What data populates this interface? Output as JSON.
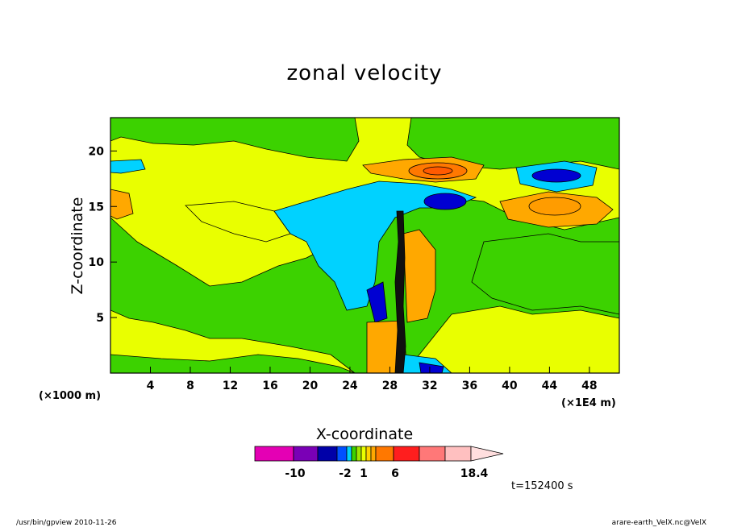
{
  "chart_data": {
    "type": "contour",
    "title": "zonal velocity",
    "xlabel": "X-coordinate",
    "ylabel": "Z-coordinate",
    "x_unit_left": "(×1000 m)",
    "x_unit_right": "(×1E4 m)",
    "x_ticks": [
      4,
      8,
      12,
      16,
      20,
      24,
      28,
      32,
      36,
      40,
      44,
      48
    ],
    "y_ticks": [
      5,
      10,
      15,
      20
    ],
    "xlim": [
      0,
      51
    ],
    "ylim": [
      0,
      23
    ],
    "background_level_color": "#e9ff00",
    "features": [
      {
        "kind": "positive_max",
        "x": 33,
        "z": 18.2,
        "color": "#ff7800"
      },
      {
        "kind": "positive_max",
        "x": 44,
        "z": 15,
        "color": "#ff9c00"
      },
      {
        "kind": "negative_min",
        "x": 44,
        "z": 18,
        "color": "#0000d2"
      },
      {
        "kind": "negative_min",
        "x": 33,
        "z": 15.5,
        "color": "#0000d2"
      },
      {
        "kind": "shear_line",
        "x": 29,
        "z_from": 0,
        "z_to": 14
      }
    ],
    "colorbar": {
      "colors": [
        "#e400b4",
        "#7a00b6",
        "#0000a8",
        "#0050ff",
        "#00d2ff",
        "#3cd200",
        "#a0e600",
        "#e9ff00",
        "#ffd200",
        "#ffa800",
        "#ff7800",
        "#ff1e1e",
        "#ff7878",
        "#ffc0c0",
        "#ffdede"
      ],
      "labels": [
        "-10",
        "-2",
        "1",
        "6",
        "18.4"
      ]
    },
    "timestamp": "t=152400 s"
  },
  "footer": {
    "left": "/usr/bin/gpview   2010-11-26",
    "right": "arare-earth_VelX.nc@VelX"
  }
}
